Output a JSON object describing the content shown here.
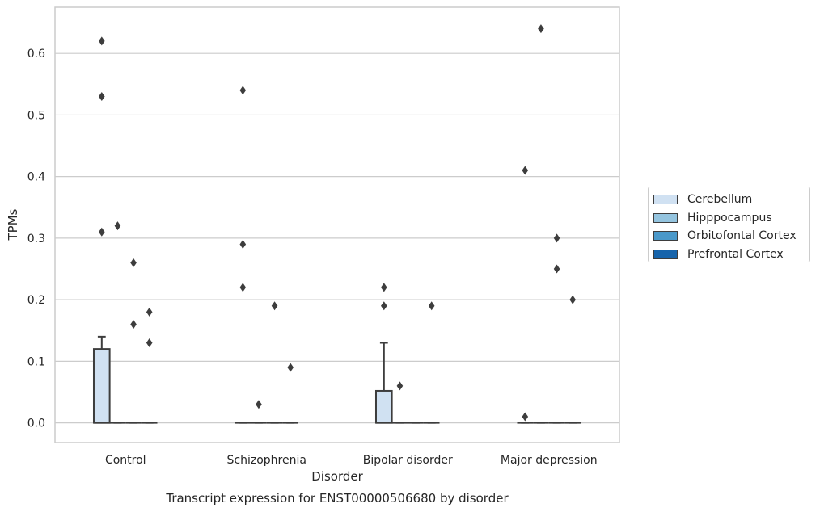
{
  "chart_data": {
    "type": "box",
    "title": "",
    "xlabel": "Disorder",
    "ylabel": "TPMs",
    "caption": "Transcript expression for ENST00000506680 by disorder",
    "categories": [
      "Control",
      "Schizophrenia",
      "Bipolar disorder",
      "Major depression"
    ],
    "yticks": [
      "0.0",
      "0.1",
      "0.2",
      "0.3",
      "0.4",
      "0.5",
      "0.6"
    ],
    "ylim": [
      -0.032,
      0.675
    ],
    "grid": true,
    "legend_position": "right",
    "series": [
      {
        "name": "Cerebellum",
        "color": "#d0e1f2",
        "boxes": [
          {
            "q1": 0.0,
            "median": 0.0,
            "q3": 0.12,
            "whisker_low": 0.0,
            "whisker_high": 0.14,
            "outliers": [
              0.62,
              0.53,
              0.31
            ]
          },
          {
            "q1": 0.0,
            "median": 0.0,
            "q3": 0.0,
            "whisker_low": 0.0,
            "whisker_high": 0.0,
            "outliers": [
              0.54,
              0.29,
              0.22
            ]
          },
          {
            "q1": 0.0,
            "median": 0.0,
            "q3": 0.052,
            "whisker_low": 0.0,
            "whisker_high": 0.13,
            "outliers": [
              0.22,
              0.19
            ]
          },
          {
            "q1": 0.0,
            "median": 0.0,
            "q3": 0.0,
            "whisker_low": 0.0,
            "whisker_high": 0.0,
            "outliers": [
              0.41,
              0.01
            ]
          }
        ]
      },
      {
        "name": "Hipppocampus",
        "color": "#94c4df",
        "boxes": [
          {
            "q1": 0.0,
            "median": 0.0,
            "q3": 0.0,
            "whisker_low": 0.0,
            "whisker_high": 0.0,
            "outliers": [
              0.32
            ]
          },
          {
            "q1": 0.0,
            "median": 0.0,
            "q3": 0.0,
            "whisker_low": 0.0,
            "whisker_high": 0.0,
            "outliers": [
              0.03
            ]
          },
          {
            "q1": 0.0,
            "median": 0.0,
            "q3": 0.0,
            "whisker_low": 0.0,
            "whisker_high": 0.0,
            "outliers": [
              0.06
            ]
          },
          {
            "q1": 0.0,
            "median": 0.0,
            "q3": 0.0,
            "whisker_low": 0.0,
            "whisker_high": 0.0,
            "outliers": [
              0.64
            ]
          }
        ]
      },
      {
        "name": "Orbitofontal Cortex",
        "color": "#4a98c9",
        "boxes": [
          {
            "q1": 0.0,
            "median": 0.0,
            "q3": 0.0,
            "whisker_low": 0.0,
            "whisker_high": 0.0,
            "outliers": [
              0.26,
              0.16
            ]
          },
          {
            "q1": 0.0,
            "median": 0.0,
            "q3": 0.0,
            "whisker_low": 0.0,
            "whisker_high": 0.0,
            "outliers": [
              0.19
            ]
          },
          {
            "q1": 0.0,
            "median": 0.0,
            "q3": 0.0,
            "whisker_low": 0.0,
            "whisker_high": 0.0,
            "outliers": []
          },
          {
            "q1": 0.0,
            "median": 0.0,
            "q3": 0.0,
            "whisker_low": 0.0,
            "whisker_high": 0.0,
            "outliers": [
              0.3,
              0.25
            ]
          }
        ]
      },
      {
        "name": "Prefrontal Cortex",
        "color": "#1764ab",
        "boxes": [
          {
            "q1": 0.0,
            "median": 0.0,
            "q3": 0.0,
            "whisker_low": 0.0,
            "whisker_high": 0.0,
            "outliers": [
              0.18,
              0.13
            ]
          },
          {
            "q1": 0.0,
            "median": 0.0,
            "q3": 0.0,
            "whisker_low": 0.0,
            "whisker_high": 0.0,
            "outliers": [
              0.09
            ]
          },
          {
            "q1": 0.0,
            "median": 0.0,
            "q3": 0.0,
            "whisker_low": 0.0,
            "whisker_high": 0.0,
            "outliers": [
              0.19
            ]
          },
          {
            "q1": 0.0,
            "median": 0.0,
            "q3": 0.0,
            "whisker_low": 0.0,
            "whisker_high": 0.0,
            "outliers": [
              0.2
            ]
          }
        ]
      }
    ],
    "colors": {
      "grid": "#cccccc",
      "frame": "#cccccc",
      "line": "#3d3d3d"
    }
  }
}
